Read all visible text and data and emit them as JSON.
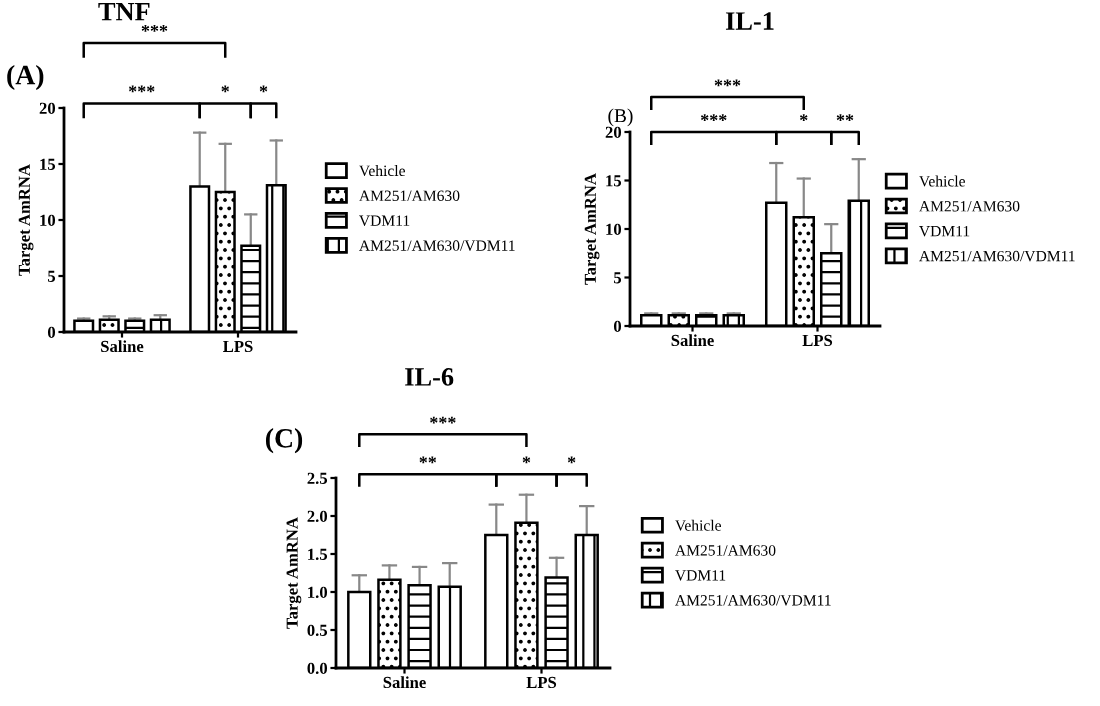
{
  "chart_data": [
    {
      "type": "bar",
      "title": "TNF",
      "ylabel": "Target AmRNA",
      "categories": [
        "Saline",
        "LPS"
      ],
      "ylim": [
        0,
        20
      ],
      "yticks": [
        0,
        5,
        10,
        15,
        20
      ],
      "legend": "right",
      "grid": false,
      "annotations": [
        "(A)",
        "***",
        "***",
        "*",
        "*"
      ],
      "series": [
        {
          "name": "Vehicle",
          "color": "#ffffff",
          "values": [
            1.0,
            13.0
          ],
          "errors": [
            [
              1.0,
              1.2
            ],
            [
              13.0,
              17.8
            ]
          ]
        },
        {
          "name": "AM251/AM630",
          "color": "#ffffff",
          "values": [
            1.1,
            12.5
          ],
          "errors": [
            [
              1.1,
              1.4
            ],
            [
              12.5,
              16.8
            ]
          ]
        },
        {
          "name": "VDM11",
          "color": "#ffffff",
          "values": [
            1.0,
            7.7
          ],
          "errors": [
            [
              1.0,
              1.2
            ],
            [
              7.7,
              10.5
            ]
          ]
        },
        {
          "name": "AM251/AM630/VDM11",
          "color": "#ffffff",
          "values": [
            1.1,
            13.1
          ],
          "errors": [
            [
              1.1,
              1.5
            ],
            [
              13.1,
              17.1
            ]
          ]
        }
      ]
    },
    {
      "type": "bar",
      "title": "IL-1",
      "ylabel": "Target AmRNA",
      "categories": [
        "Saline",
        "LPS"
      ],
      "ylim": [
        0,
        20
      ],
      "yticks": [
        0,
        5,
        10,
        15,
        20
      ],
      "legend": "right",
      "grid": false,
      "annotations": [
        "(B)",
        "***",
        "***",
        "*",
        "**"
      ],
      "series": [
        {
          "name": "Vehicle",
          "color": "#ffffff",
          "values": [
            1.1,
            12.7
          ],
          "errors": [
            [
              1.1,
              1.3
            ],
            [
              12.7,
              16.8
            ]
          ]
        },
        {
          "name": "AM251/AM630",
          "color": "#ffffff",
          "values": [
            1.1,
            11.2
          ],
          "errors": [
            [
              1.1,
              1.3
            ],
            [
              11.2,
              15.2
            ]
          ]
        },
        {
          "name": "VDM11",
          "color": "#ffffff",
          "values": [
            1.1,
            7.5
          ],
          "errors": [
            [
              1.1,
              1.3
            ],
            [
              7.5,
              10.5
            ]
          ]
        },
        {
          "name": "AM251/AM630/VDM11",
          "color": "#ffffff",
          "values": [
            1.1,
            12.9
          ],
          "errors": [
            [
              1.1,
              1.3
            ],
            [
              12.9,
              17.2
            ]
          ]
        }
      ]
    },
    {
      "type": "bar",
      "title": "IL-6",
      "ylabel": "Target AmRNA",
      "categories": [
        "Saline",
        "LPS"
      ],
      "ylim": [
        0,
        2.5
      ],
      "yticks": [
        {
          "value": 0,
          "label": "0.0"
        },
        {
          "value": 0.5,
          "label": "0.5"
        },
        {
          "value": 1,
          "label": "1.0"
        },
        {
          "value": 1.5,
          "label": "1.5"
        },
        {
          "value": 2,
          "label": "2.0"
        },
        {
          "value": 2.5,
          "label": "2.5"
        }
      ],
      "legend": "right",
      "grid": false,
      "annotations": [
        "(C)",
        "***",
        "**",
        "*",
        "*"
      ],
      "series": [
        {
          "name": "Vehicle",
          "color": "#ffffff",
          "values": [
            1.0,
            1.75
          ],
          "errors": [
            [
              1.0,
              1.22
            ],
            [
              1.75,
              2.15
            ]
          ]
        },
        {
          "name": "AM251/AM630",
          "color": "#ffffff",
          "values": [
            1.16,
            1.91
          ],
          "errors": [
            [
              1.16,
              1.35
            ],
            [
              1.91,
              2.28
            ]
          ]
        },
        {
          "name": "VDM11",
          "color": "#ffffff",
          "values": [
            1.09,
            1.19
          ],
          "errors": [
            [
              1.09,
              1.33
            ],
            [
              1.19,
              1.45
            ]
          ]
        },
        {
          "name": "AM251/AM630/VDM11",
          "color": "#ffffff",
          "values": [
            1.07,
            1.75
          ],
          "errors": [
            [
              1.07,
              1.38
            ],
            [
              1.75,
              2.13
            ]
          ]
        }
      ]
    }
  ]
}
